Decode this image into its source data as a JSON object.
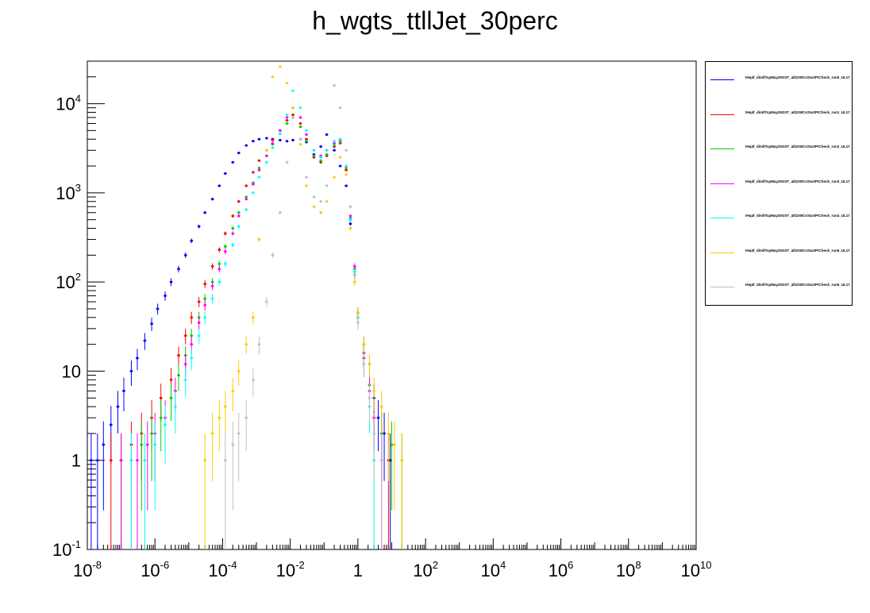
{
  "title": "h_wgts_ttllJet_30perc",
  "chart_data": {
    "type": "scatter",
    "title": "h_wgts_ttllJet_30perc",
    "xlabel": "",
    "ylabel": "",
    "x_scale": "log",
    "y_scale": "log",
    "xlim": [
      1e-08,
      10000000000.0
    ],
    "ylim": [
      0.1,
      30000
    ],
    "grid": false,
    "legend_position": "right",
    "x_ticks": [
      {
        "base": "10",
        "exp": "-8"
      },
      {
        "base": "10",
        "exp": "-6"
      },
      {
        "base": "10",
        "exp": "-4"
      },
      {
        "base": "10",
        "exp": "-2"
      },
      {
        "base": "1",
        "exp": ""
      },
      {
        "base": "10",
        "exp": "2"
      },
      {
        "base": "10",
        "exp": "4"
      },
      {
        "base": "10",
        "exp": "6"
      },
      {
        "base": "10",
        "exp": "8"
      },
      {
        "base": "10",
        "exp": "10"
      }
    ],
    "y_ticks": [
      {
        "base": "10",
        "exp": "-1"
      },
      {
        "base": "1",
        "exp": ""
      },
      {
        "base": "10",
        "exp": ""
      },
      {
        "base": "10",
        "exp": "2"
      },
      {
        "base": "10",
        "exp": "3"
      },
      {
        "base": "10",
        "exp": "4"
      }
    ],
    "series": [
      {
        "name": "tHq4f_dimllTcpMay20GST_all22WCsStartPtCheck_run0_UL17",
        "color": "#0000ff",
        "x": [
          1.3e-08,
          2e-08,
          3e-08,
          5e-08,
          8e-08,
          1.2e-07,
          2e-07,
          3e-07,
          5e-07,
          8e-07,
          1.2e-06,
          2e-06,
          3e-06,
          5e-06,
          8e-06,
          1.2e-05,
          2e-05,
          3e-05,
          5e-05,
          8e-05,
          0.00012,
          0.0002,
          0.0003,
          0.0005,
          0.0008,
          0.0012,
          0.002,
          0.003,
          0.005,
          0.008,
          0.012,
          0.02,
          0.03,
          0.05,
          0.08,
          0.12,
          0.2,
          0.3,
          0.45,
          0.6,
          0.8,
          1.0,
          1.5,
          2.2,
          3,
          4,
          6,
          9
        ],
        "y": [
          1,
          1,
          1.5,
          2.5,
          4,
          6,
          10,
          14,
          22,
          34,
          50,
          70,
          100,
          140,
          200,
          290,
          420,
          600,
          850,
          1200,
          1650,
          2200,
          2800,
          3400,
          3800,
          4000,
          4100,
          4000,
          3900,
          3800,
          3900,
          4000,
          3700,
          2700,
          3300,
          4500,
          3000,
          2000,
          1200,
          450,
          120,
          45,
          20,
          12,
          5,
          3,
          2,
          1
        ]
      },
      {
        "name": "tHq4f_dimllTcpMay20GST_all22WCsStartPtCheck_run1_UL17",
        "color": "#ff0000",
        "x": [
          5e-08,
          1e-07,
          2e-07,
          4e-07,
          8e-07,
          1.5e-06,
          3e-06,
          5e-06,
          8e-06,
          1.2e-05,
          2e-05,
          3e-05,
          5e-05,
          8e-05,
          0.00012,
          0.0002,
          0.0003,
          0.0005,
          0.0008,
          0.0012,
          0.002,
          0.003,
          0.005,
          0.008,
          0.012,
          0.02,
          0.03,
          0.05,
          0.08,
          0.12,
          0.2,
          0.3,
          0.45,
          0.6,
          0.8,
          1.0,
          1.5,
          2.2,
          3,
          5,
          8
        ],
        "y": [
          1,
          1,
          1.5,
          2,
          3,
          5,
          8,
          15,
          25,
          40,
          60,
          95,
          150,
          230,
          350,
          550,
          800,
          1200,
          1700,
          2300,
          3000,
          3900,
          5000,
          6500,
          7500,
          6000,
          4000,
          2500,
          2200,
          2600,
          3300,
          3600,
          1800,
          500,
          130,
          40,
          14,
          7,
          3,
          2,
          1
        ]
      },
      {
        "name": "tHq4f_dimllTcpMay20GST_all22WCsStartPtCheck_run2_UL17",
        "color": "#00cc00",
        "x": [
          1e-07,
          2e-07,
          4e-07,
          8e-07,
          1.5e-06,
          3e-06,
          5e-06,
          8e-06,
          1.2e-05,
          2e-05,
          3e-05,
          5e-05,
          8e-05,
          0.00012,
          0.0002,
          0.0003,
          0.0005,
          0.0008,
          0.0012,
          0.002,
          0.003,
          0.005,
          0.008,
          0.012,
          0.02,
          0.03,
          0.05,
          0.08,
          0.12,
          0.2,
          0.3,
          0.45,
          0.6,
          0.8,
          1.0,
          1.5,
          2.2,
          3,
          5,
          10,
          20
        ],
        "y": [
          1,
          1,
          1.5,
          2,
          3,
          5,
          9,
          15,
          25,
          40,
          65,
          100,
          160,
          250,
          400,
          600,
          900,
          1300,
          1900,
          2600,
          3500,
          4600,
          6000,
          7000,
          5500,
          3800,
          2600,
          2300,
          2700,
          3400,
          3700,
          1900,
          520,
          140,
          45,
          16,
          7,
          3,
          2,
          1.5,
          1
        ]
      },
      {
        "name": "tHq4f_dimllTcpMay20GST_all22WCsStartPtCheck_run3_UL17",
        "color": "#ff00ff",
        "x": [
          1e-07,
          3e-07,
          6e-07,
          1e-06,
          2e-06,
          4e-06,
          8e-06,
          1.2e-05,
          2e-05,
          3e-05,
          5e-05,
          8e-05,
          0.00012,
          0.0002,
          0.0003,
          0.0005,
          0.0008,
          0.0012,
          0.002,
          0.003,
          0.005,
          0.008,
          0.012,
          0.02,
          0.03,
          0.05,
          0.08,
          0.12,
          0.2,
          0.3,
          0.45,
          0.6,
          0.8,
          1.0,
          1.5,
          2.2,
          3,
          5
        ],
        "y": [
          1,
          1,
          1.5,
          2,
          3,
          6,
          12,
          20,
          35,
          55,
          90,
          140,
          220,
          350,
          550,
          850,
          1250,
          1800,
          2600,
          3600,
          5000,
          7000,
          9000,
          7000,
          4500,
          3000,
          2600,
          3000,
          3600,
          3900,
          2000,
          550,
          150,
          45,
          16,
          6,
          3,
          1
        ]
      },
      {
        "name": "tHq4f_dimllTcpMay20GST_all22WCsStartPtCheck_run4_UL17",
        "color": "#00ffff",
        "x": [
          2e-07,
          5e-07,
          1e-06,
          2e-06,
          4e-06,
          8e-06,
          1.2e-05,
          2e-05,
          3e-05,
          5e-05,
          8e-05,
          0.00012,
          0.0002,
          0.0003,
          0.0005,
          0.0008,
          0.0012,
          0.002,
          0.003,
          0.005,
          0.008,
          0.012,
          0.02,
          0.03,
          0.05,
          0.08,
          0.12,
          0.2,
          0.3,
          0.45,
          0.6,
          0.8,
          1.0,
          1.5,
          2.2,
          3
        ],
        "y": [
          1,
          1,
          1.5,
          2.5,
          4,
          8,
          14,
          25,
          40,
          65,
          100,
          160,
          260,
          420,
          650,
          1000,
          1500,
          2200,
          3200,
          4600,
          7500,
          14000,
          9000,
          5000,
          3000,
          2500,
          3000,
          3800,
          4000,
          2000,
          500,
          130,
          40,
          12,
          4,
          1
        ]
      },
      {
        "name": "tHq4f_dimllTcpMay20GST_all22WCsStartPtCheck_run5_UL17",
        "color": "#ffcc00",
        "x": [
          3e-05,
          5e-05,
          8e-05,
          0.00012,
          0.0002,
          0.0003,
          0.0005,
          0.0008,
          0.0012,
          0.002,
          0.003,
          0.005,
          0.008,
          0.012,
          0.02,
          0.03,
          0.05,
          0.08,
          0.12,
          0.2,
          0.3,
          0.45,
          0.6,
          0.8,
          1.0,
          1.5,
          2.2,
          3,
          5,
          8,
          12,
          20
        ],
        "y": [
          1,
          2,
          3,
          4,
          6,
          10,
          20,
          40,
          300,
          3000,
          20000,
          26000,
          17000,
          9000,
          3500,
          1200,
          700,
          600,
          800,
          1500,
          2500,
          1600,
          400,
          100,
          45,
          20,
          12,
          6,
          4,
          2,
          1.5,
          1
        ]
      },
      {
        "name": "tHq4f_dimllTcpMay20GST_all22WCsStartPtCheck_run6_UL17",
        "color": "#c0c0c0",
        "x": [
          0.00012,
          0.0002,
          0.0003,
          0.0005,
          0.0008,
          0.0012,
          0.002,
          0.003,
          0.005,
          0.008,
          0.012,
          0.02,
          0.03,
          0.05,
          0.08,
          0.12,
          0.2,
          0.3,
          0.45,
          0.6,
          0.8,
          1.0,
          1.5,
          2.2,
          3,
          5
        ],
        "y": [
          1,
          1.5,
          2,
          3,
          8,
          20,
          60,
          200,
          600,
          2200,
          7000,
          4000,
          1500,
          900,
          800,
          1200,
          16000,
          9000,
          3000,
          700,
          120,
          35,
          12,
          5,
          2,
          1
        ]
      }
    ]
  }
}
